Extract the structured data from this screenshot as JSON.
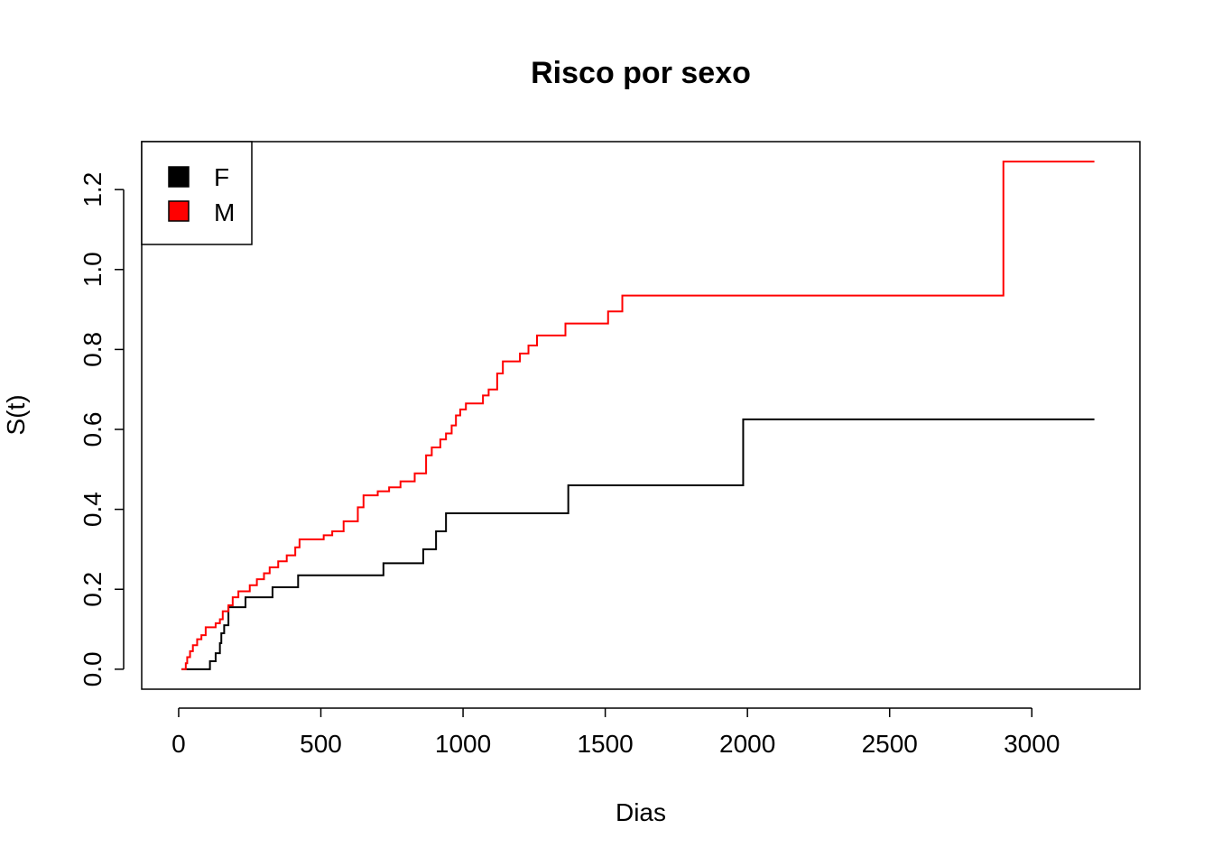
{
  "chart_data": {
    "type": "line",
    "step": true,
    "title": "Risco por sexo",
    "xlabel": "Dias",
    "ylabel": "S(t)",
    "xlim": [
      -130,
      3380
    ],
    "ylim": [
      -0.05,
      1.32
    ],
    "xticks": [
      0,
      500,
      1000,
      1500,
      2000,
      2500,
      3000
    ],
    "xtick_labels": [
      "0",
      "500",
      "1000",
      "1500",
      "2000",
      "2500",
      "3000"
    ],
    "yticks": [
      0.0,
      0.2,
      0.4,
      0.6,
      0.8,
      1.0,
      1.2
    ],
    "ytick_labels": [
      "0.0",
      "0.2",
      "0.4",
      "0.6",
      "0.8",
      "1.0",
      "1.2"
    ],
    "grid": false,
    "legend_position": "top-left",
    "legend": [
      {
        "label": "F",
        "color": "#000000"
      },
      {
        "label": "M",
        "color": "#ff0000"
      }
    ],
    "series": [
      {
        "name": "F",
        "color": "#000000",
        "x": [
          10,
          110,
          130,
          145,
          150,
          160,
          175,
          235,
          330,
          420,
          720,
          860,
          905,
          940,
          1370,
          1985,
          3220
        ],
        "y": [
          0.0,
          0.02,
          0.04,
          0.065,
          0.09,
          0.11,
          0.155,
          0.18,
          0.205,
          0.235,
          0.265,
          0.3,
          0.345,
          0.39,
          0.46,
          0.625,
          0.625
        ]
      },
      {
        "name": "M",
        "color": "#ff0000",
        "x": [
          10,
          25,
          30,
          40,
          50,
          65,
          80,
          95,
          130,
          145,
          155,
          175,
          190,
          210,
          250,
          275,
          300,
          320,
          350,
          380,
          410,
          425,
          510,
          540,
          580,
          630,
          650,
          700,
          740,
          780,
          830,
          870,
          890,
          920,
          940,
          960,
          975,
          990,
          1010,
          1070,
          1090,
          1120,
          1140,
          1200,
          1230,
          1260,
          1360,
          1510,
          1560,
          2900,
          3220
        ],
        "y": [
          0.0,
          0.015,
          0.03,
          0.045,
          0.06,
          0.075,
          0.085,
          0.105,
          0.115,
          0.125,
          0.145,
          0.16,
          0.18,
          0.195,
          0.21,
          0.225,
          0.24,
          0.255,
          0.27,
          0.285,
          0.305,
          0.325,
          0.335,
          0.345,
          0.37,
          0.405,
          0.435,
          0.445,
          0.455,
          0.47,
          0.49,
          0.535,
          0.555,
          0.575,
          0.59,
          0.61,
          0.635,
          0.65,
          0.665,
          0.685,
          0.7,
          0.74,
          0.77,
          0.79,
          0.81,
          0.835,
          0.865,
          0.895,
          0.935,
          1.27,
          1.27
        ]
      }
    ]
  }
}
